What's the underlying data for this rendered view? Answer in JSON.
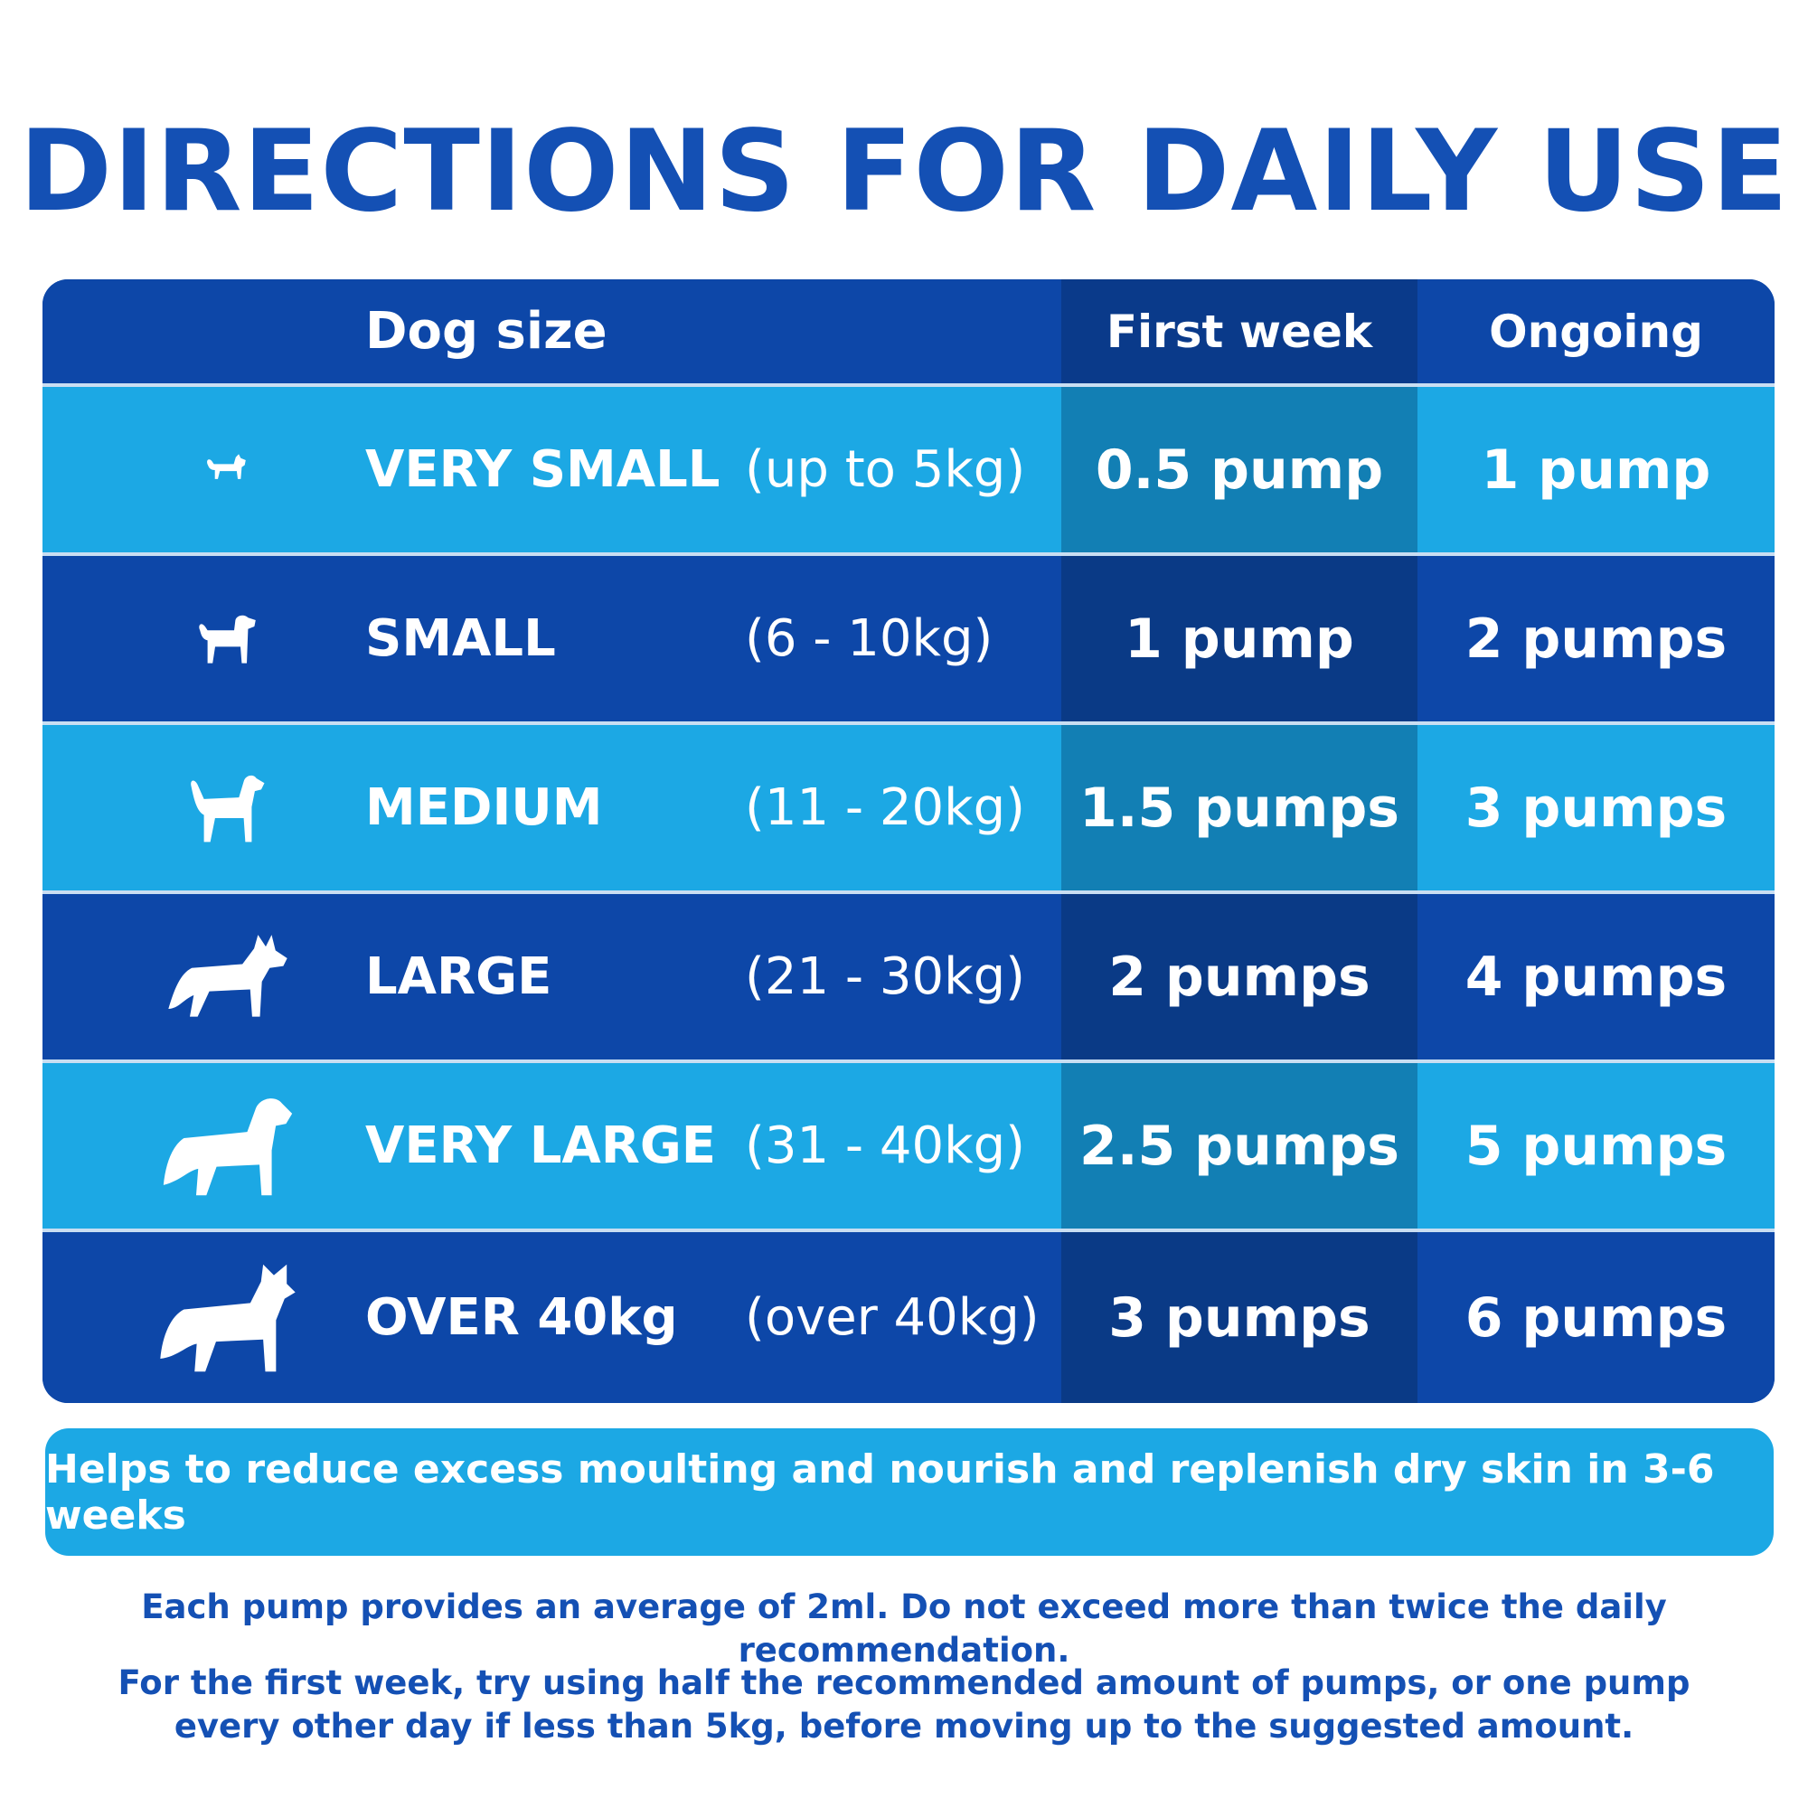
{
  "title": "DIRECTIONS FOR DAILY USE",
  "table": {
    "headers": [
      "Dog size",
      "First week",
      "Ongoing"
    ],
    "rows": [
      {
        "size": "VERY SMALL",
        "range": "(up to 5kg)",
        "first_week": "0.5 pump",
        "ongoing": "1 pump",
        "icon": "tiny-dog-icon"
      },
      {
        "size": "SMALL",
        "range": "(6 - 10kg)",
        "first_week": "1 pump",
        "ongoing": "2 pumps",
        "icon": "small-dog-icon"
      },
      {
        "size": "MEDIUM",
        "range": "(11 - 20kg)",
        "first_week": "1.5 pumps",
        "ongoing": "3 pumps",
        "icon": "medium-dog-icon"
      },
      {
        "size": "LARGE",
        "range": "(21 - 30kg)",
        "first_week": "2 pumps",
        "ongoing": "4 pumps",
        "icon": "large-dog-icon"
      },
      {
        "size": "VERY LARGE",
        "range": "(31 - 40kg)",
        "first_week": "2.5 pumps",
        "ongoing": "5 pumps",
        "icon": "very-large-dog-icon"
      },
      {
        "size": "OVER 40kg",
        "range": "(over 40kg)",
        "first_week": "3 pumps",
        "ongoing": "6 pumps",
        "icon": "giant-dog-icon"
      }
    ]
  },
  "banner": "Helps to reduce excess moulting and nourish and replenish dry skin in 3-6 weeks",
  "notes": [
    "Each pump provides an average of 2ml. Do not exceed more than twice the daily recommendation.",
    "For the first week, try using half the recommended amount of pumps, or one pump every other day if less than 5kg, before moving up to the suggested amount."
  ],
  "colors": {
    "title_blue": "#1450b4",
    "dark_row": "#0d47a8",
    "light_row": "#1ca8e4",
    "first_week_dark": "#0a3a86",
    "first_week_light": "#127fb4"
  }
}
